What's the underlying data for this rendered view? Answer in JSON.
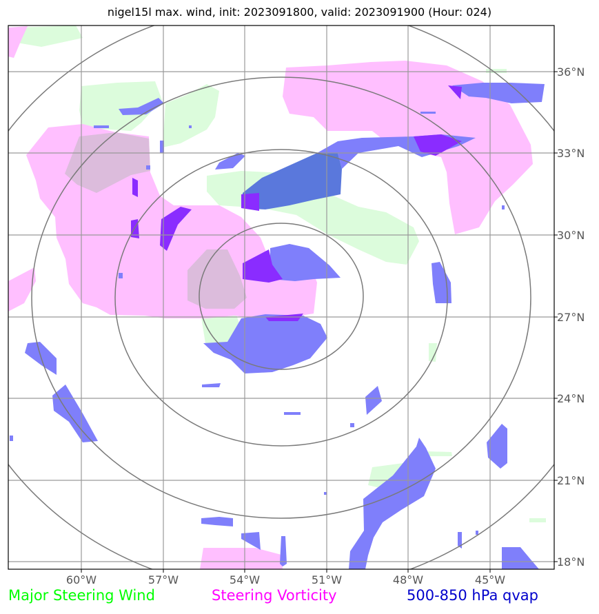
{
  "title": "nigel15l max. wind, init: 2023091800, valid: 2023091900 (Hour: 024)",
  "map": {
    "lon_labels": [
      "60°W",
      "57°W",
      "54°W",
      "51°W",
      "48°W",
      "45°W"
    ],
    "lat_labels": [
      "36°N",
      "33°N",
      "30°N",
      "27°N",
      "24°N",
      "21°N",
      "18°N"
    ],
    "lon_range": [
      -62.7,
      -42.5
    ],
    "lat_range": [
      17.8,
      37.9
    ],
    "gridlines": true,
    "range_rings": 4,
    "layers": [
      {
        "name": "Major Steering Wind",
        "color": "#00ff00"
      },
      {
        "name": "Steering Vorticity",
        "color": "#ff00ff"
      },
      {
        "name": "500-850 hPa qvap",
        "color": "#0000cc"
      }
    ]
  },
  "legend": {
    "wind_label": "Major Steering Wind",
    "vort_label": "Steering Vorticity",
    "qvap_label": "500-850 hPa qvap",
    "wind_color": "#00ff00",
    "vort_color": "#ff00ff",
    "qvap_color": "#0000cc"
  }
}
